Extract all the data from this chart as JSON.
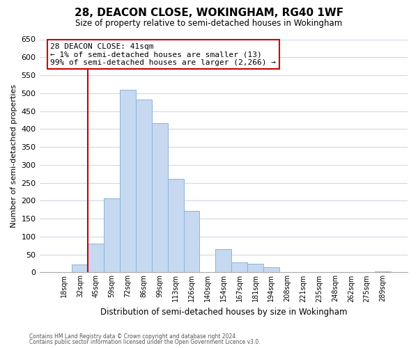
{
  "title": "28, DEACON CLOSE, WOKINGHAM, RG40 1WF",
  "subtitle": "Size of property relative to semi-detached houses in Wokingham",
  "xlabel": "Distribution of semi-detached houses by size in Wokingham",
  "ylabel": "Number of semi-detached properties",
  "footnote1": "Contains HM Land Registry data © Crown copyright and database right 2024.",
  "footnote2": "Contains public sector information licensed under the Open Government Licence v3.0.",
  "bar_labels": [
    "18sqm",
    "32sqm",
    "45sqm",
    "59sqm",
    "72sqm",
    "86sqm",
    "99sqm",
    "113sqm",
    "126sqm",
    "140sqm",
    "154sqm",
    "167sqm",
    "181sqm",
    "194sqm",
    "208sqm",
    "221sqm",
    "235sqm",
    "248sqm",
    "262sqm",
    "275sqm",
    "289sqm"
  ],
  "bar_values": [
    0,
    22,
    80,
    207,
    510,
    482,
    416,
    260,
    172,
    0,
    65,
    28,
    24,
    14,
    0,
    0,
    0,
    0,
    0,
    0,
    3
  ],
  "bar_color": "#c6d9f1",
  "bar_edge_color": "#8ab4d9",
  "ylim": [
    0,
    650
  ],
  "yticks": [
    0,
    50,
    100,
    150,
    200,
    250,
    300,
    350,
    400,
    450,
    500,
    550,
    600,
    650
  ],
  "property_bar_index": 2,
  "annotation_title": "28 DEACON CLOSE: 41sqm",
  "annotation_line1": "← 1% of semi-detached houses are smaller (13)",
  "annotation_line2": "99% of semi-detached houses are larger (2,266) →",
  "red_line_color": "#cc0000",
  "background_color": "#ffffff",
  "grid_color": "#d0d8e8"
}
